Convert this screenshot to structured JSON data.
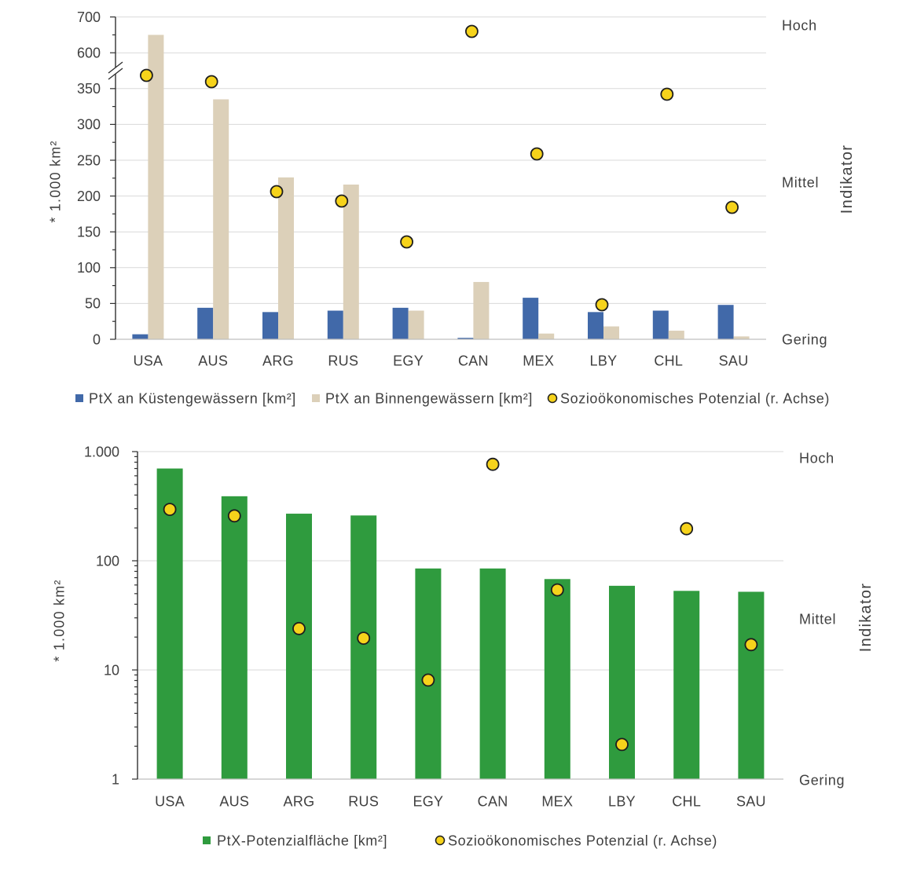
{
  "chart_data": [
    {
      "type": "bar",
      "categories": [
        "USA",
        "AUS",
        "ARG",
        "RUS",
        "EGY",
        "CAN",
        "MEX",
        "LBY",
        "CHL",
        "SAU"
      ],
      "ylabel": "* 1.000 km²",
      "y_log": false,
      "ylim": [
        0,
        700
      ],
      "y_break": [
        350,
        600
      ],
      "y_ticks": [
        0,
        50,
        100,
        150,
        200,
        250,
        300,
        350,
        600,
        700
      ],
      "y_tick_labels": [
        "0",
        "50",
        "100",
        "150",
        "200",
        "250",
        "300",
        "350",
        "600",
        "700"
      ],
      "y2label": "Indikator",
      "y2lim": [
        0,
        1
      ],
      "y2_ticks": [
        0,
        0.5,
        1
      ],
      "y2_tick_labels": [
        "Gering",
        "Mittel",
        "Hoch"
      ],
      "grid": true,
      "legend_position": "bottom",
      "series": [
        {
          "name": "PtX an Küstengewässern [km²]",
          "right_axis": false,
          "color": "#4169A9",
          "values": [
            7,
            44,
            38,
            40,
            44,
            2,
            58,
            38,
            40,
            48
          ]
        },
        {
          "name": "PtX an Binnengewässern [km²]",
          "right_axis": false,
          "color": "#DCD0B9",
          "values": [
            650,
            335,
            226,
            216,
            40,
            80,
            8,
            18,
            12,
            4
          ]
        },
        {
          "name": "Sozioökonomisches Potenzial (r. Achse)",
          "right_axis": true,
          "color": "#F6D31B",
          "values": [
            0.84,
            0.82,
            0.47,
            0.44,
            0.31,
            0.98,
            0.59,
            0.11,
            0.78,
            0.42
          ]
        }
      ]
    },
    {
      "type": "bar",
      "categories": [
        "USA",
        "AUS",
        "ARG",
        "RUS",
        "EGY",
        "CAN",
        "MEX",
        "LBY",
        "CHL",
        "SAU"
      ],
      "ylabel": "* 1.000 km²",
      "y_log": true,
      "ylim": [
        1,
        1000
      ],
      "y_ticks": [
        1,
        10,
        100,
        1000
      ],
      "y_tick_labels": [
        "1",
        "10",
        "100",
        "1.000"
      ],
      "y2label": "Indikator",
      "y2lim": [
        0,
        1
      ],
      "y2_ticks": [
        0,
        0.5,
        1
      ],
      "y2_tick_labels": [
        "Gering",
        "Mittel",
        "Hoch"
      ],
      "grid": true,
      "legend_position": "bottom",
      "series": [
        {
          "name": "PtX-Potenzialfläche [km²]",
          "right_axis": false,
          "color": "#2F9B3E",
          "values": [
            700,
            390,
            270,
            260,
            85,
            85,
            68,
            59,
            53,
            52
          ]
        },
        {
          "name": "Sozioökonomisches Potenzial (r. Achse)",
          "right_axis": true,
          "color": "#F6D31B",
          "values": [
            0.84,
            0.82,
            0.47,
            0.44,
            0.31,
            0.98,
            0.59,
            0.11,
            0.78,
            0.42
          ]
        }
      ]
    }
  ]
}
